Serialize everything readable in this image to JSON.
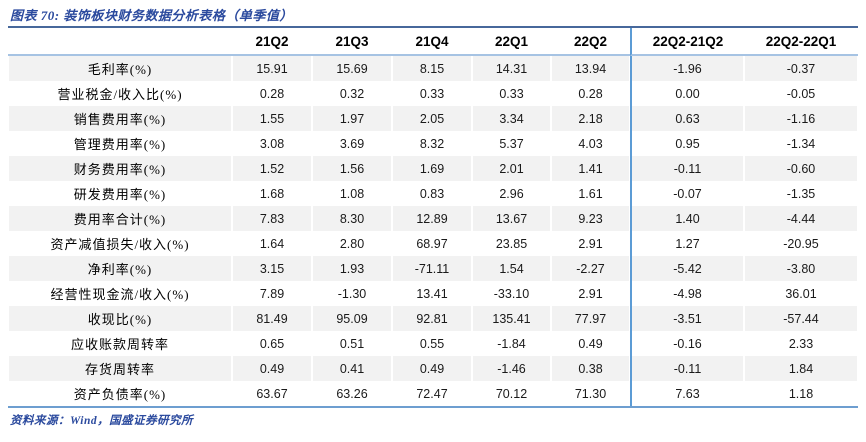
{
  "title": "图表 70: 装饰板块财务数据分析表格（单季值）",
  "footer": "资料来源：Wind，国盛证券研究所",
  "colors": {
    "accent": "#2b4a9e",
    "top_border": "#47689b",
    "header_underline": "#a6c3e3",
    "divider": "#5b9bd5",
    "bottom_border": "#6d9ed0",
    "stripe": "#f2f2f2"
  },
  "chart_data": {
    "type": "table",
    "title": "装饰板块财务数据分析表格（单季值）",
    "columns": [
      "",
      "21Q2",
      "21Q3",
      "21Q4",
      "22Q1",
      "22Q2",
      "22Q2-21Q2",
      "22Q2-22Q1"
    ],
    "rows": [
      {
        "label": "毛利率(%)",
        "values": [
          "15.91",
          "15.69",
          "8.15",
          "14.31",
          "13.94",
          "-1.96",
          "-0.37"
        ]
      },
      {
        "label": "营业税金/收入比(%)",
        "values": [
          "0.28",
          "0.32",
          "0.33",
          "0.33",
          "0.28",
          "0.00",
          "-0.05"
        ]
      },
      {
        "label": "销售费用率(%)",
        "values": [
          "1.55",
          "1.97",
          "2.05",
          "3.34",
          "2.18",
          "0.63",
          "-1.16"
        ]
      },
      {
        "label": "管理费用率(%)",
        "values": [
          "3.08",
          "3.69",
          "8.32",
          "5.37",
          "4.03",
          "0.95",
          "-1.34"
        ]
      },
      {
        "label": "财务费用率(%)",
        "values": [
          "1.52",
          "1.56",
          "1.69",
          "2.01",
          "1.41",
          "-0.11",
          "-0.60"
        ]
      },
      {
        "label": "研发费用率(%)",
        "values": [
          "1.68",
          "1.08",
          "0.83",
          "2.96",
          "1.61",
          "-0.07",
          "-1.35"
        ]
      },
      {
        "label": "费用率合计(%)",
        "values": [
          "7.83",
          "8.30",
          "12.89",
          "13.67",
          "9.23",
          "1.40",
          "-4.44"
        ]
      },
      {
        "label": "资产减值损失/收入(%)",
        "values": [
          "1.64",
          "2.80",
          "68.97",
          "23.85",
          "2.91",
          "1.27",
          "-20.95"
        ]
      },
      {
        "label": "净利率(%)",
        "values": [
          "3.15",
          "1.93",
          "-71.11",
          "1.54",
          "-2.27",
          "-5.42",
          "-3.80"
        ]
      },
      {
        "label": "经营性现金流/收入(%)",
        "values": [
          "7.89",
          "-1.30",
          "13.41",
          "-33.10",
          "2.91",
          "-4.98",
          "36.01"
        ]
      },
      {
        "label": "收现比(%)",
        "values": [
          "81.49",
          "95.09",
          "92.81",
          "135.41",
          "77.97",
          "-3.51",
          "-57.44"
        ]
      },
      {
        "label": "应收账款周转率",
        "values": [
          "0.65",
          "0.51",
          "0.55",
          "-1.84",
          "0.49",
          "-0.16",
          "2.33"
        ]
      },
      {
        "label": "存货周转率",
        "values": [
          "0.49",
          "0.41",
          "0.49",
          "-1.46",
          "0.38",
          "-0.11",
          "1.84"
        ]
      },
      {
        "label": "资产负债率(%)",
        "values": [
          "63.67",
          "63.26",
          "72.47",
          "70.12",
          "71.30",
          "7.63",
          "1.18"
        ]
      }
    ]
  }
}
